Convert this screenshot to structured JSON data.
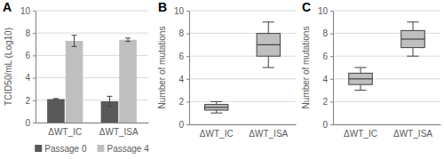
{
  "chart_data": [
    {
      "type": "bar",
      "title": "A",
      "y_label": "TCID50/mL (Log10)",
      "categories": [
        "ΔWT_IC",
        "ΔWT_ISA"
      ],
      "series": [
        {
          "name": "Passage 0",
          "color": "#595959",
          "values": [
            2.1,
            1.9
          ],
          "errors": [
            0.05,
            0.45
          ]
        },
        {
          "name": "Passage 4",
          "color": "#bfbfbf",
          "values": [
            7.3,
            7.4
          ],
          "errors": [
            0.5,
            0.15
          ]
        }
      ],
      "ylim": [
        0,
        10
      ],
      "yticks": [
        0,
        2,
        4,
        6,
        8,
        10
      ],
      "grid": true,
      "legend": "bottom"
    },
    {
      "type": "box",
      "title": "B",
      "y_label": "Number of mutations",
      "categories": [
        "ΔWT_IC",
        "ΔWT_ISA"
      ],
      "color": "#bfbfbf",
      "boxes": [
        {
          "min": 1,
          "q1": 1.25,
          "median": 1.5,
          "q3": 1.75,
          "max": 2
        },
        {
          "min": 5,
          "q1": 6,
          "median": 7,
          "q3": 8,
          "max": 9
        }
      ],
      "ylim": [
        0,
        10
      ],
      "yticks": [
        0,
        2,
        4,
        6,
        8,
        10
      ],
      "grid": true
    },
    {
      "type": "box",
      "title": "C",
      "y_label": "Number of mutations",
      "categories": [
        "ΔWT_IC",
        "ΔWT_ISA"
      ],
      "color": "#bfbfbf",
      "boxes": [
        {
          "min": 3,
          "q1": 3.5,
          "median": 4,
          "q3": 4.5,
          "max": 5
        },
        {
          "min": 6,
          "q1": 6.75,
          "median": 7.5,
          "q3": 8.25,
          "max": 9
        }
      ],
      "ylim": [
        0,
        10
      ],
      "yticks": [
        0,
        2,
        4,
        6,
        8,
        10
      ],
      "grid": true
    }
  ]
}
